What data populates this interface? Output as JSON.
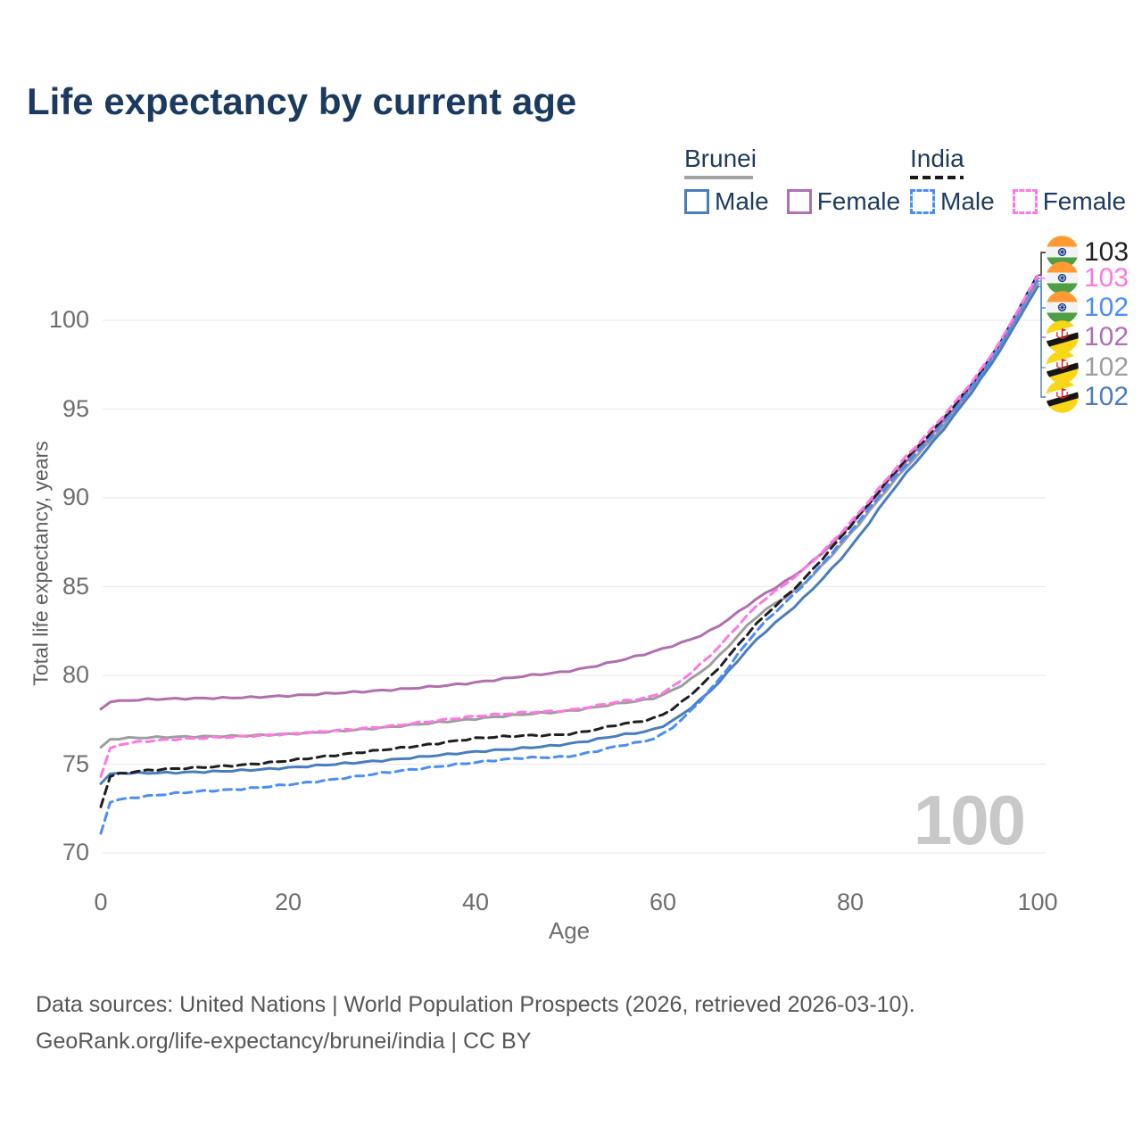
{
  "title": "Life expectancy by current age",
  "watermark": "100",
  "legend": {
    "groups": [
      {
        "country": "Brunei",
        "line_style": "solid",
        "underline_color": "#a3a3a3",
        "items": [
          {
            "label": "Male",
            "color": "#4a7dbe"
          },
          {
            "label": "Female",
            "color": "#b06fb0"
          }
        ]
      },
      {
        "country": "India",
        "line_style": "dashed",
        "underline_color": "#1a1a1a",
        "items": [
          {
            "label": "Male",
            "color": "#4a8ef5"
          },
          {
            "label": "Female",
            "color": "#ff77e3"
          }
        ]
      }
    ]
  },
  "chart_data": {
    "type": "line",
    "title": "Life expectancy by current age",
    "xlabel": "Age",
    "ylabel": "Total life expectancy, years",
    "xlim": [
      0,
      100
    ],
    "ylim": [
      70,
      103
    ],
    "xticks": [
      0,
      20,
      40,
      60,
      80,
      100
    ],
    "yticks": [
      70,
      75,
      80,
      85,
      90,
      95,
      100
    ],
    "grid": "horizontal",
    "legend_position": "top-right",
    "ages": [
      0,
      1,
      2,
      5,
      10,
      15,
      20,
      25,
      30,
      35,
      40,
      45,
      50,
      55,
      60,
      65,
      70,
      75,
      80,
      85,
      90,
      95,
      100
    ],
    "series": [
      {
        "name": "Brunei Female",
        "country": "Brunei",
        "sex": "Female",
        "style": "solid",
        "color": "#b06fb0",
        "end_label_row": 3,
        "values": [
          78.1,
          78.5,
          78.55,
          78.65,
          78.7,
          78.75,
          78.85,
          79.0,
          79.15,
          79.35,
          79.6,
          79.95,
          80.25,
          80.8,
          81.5,
          82.5,
          84.3,
          86.0,
          88.45,
          91.5,
          94.35,
          97.8,
          102.2
        ]
      },
      {
        "name": "Brunei Total",
        "country": "Brunei",
        "sex": "Total",
        "style": "solid",
        "color": "#9e9e9e",
        "end_label_row": 4,
        "values": [
          75.95,
          76.4,
          76.45,
          76.5,
          76.55,
          76.6,
          76.7,
          76.85,
          77.05,
          77.3,
          77.55,
          77.8,
          78.0,
          78.4,
          78.9,
          80.6,
          83.3,
          85.15,
          87.95,
          91.15,
          94.1,
          97.65,
          102.05
        ]
      },
      {
        "name": "Brunei Male",
        "country": "Brunei",
        "sex": "Male",
        "style": "solid",
        "color": "#4a7dbe",
        "end_label_row": 5,
        "values": [
          73.9,
          74.45,
          74.5,
          74.5,
          74.55,
          74.65,
          74.8,
          75.0,
          75.2,
          75.45,
          75.7,
          75.9,
          76.15,
          76.6,
          77.15,
          79.1,
          82.0,
          84.35,
          87.2,
          90.75,
          93.9,
          97.5,
          101.9
        ]
      },
      {
        "name": "India Total",
        "country": "India",
        "sex": "Total",
        "style": "dashed",
        "color": "#1f1f1f",
        "end_label_row": 0,
        "values": [
          72.6,
          74.3,
          74.45,
          74.65,
          74.8,
          74.95,
          75.2,
          75.5,
          75.8,
          76.1,
          76.45,
          76.6,
          76.7,
          77.2,
          77.8,
          79.9,
          82.9,
          85.4,
          88.4,
          91.6,
          94.5,
          97.9,
          102.55
        ]
      },
      {
        "name": "India Male",
        "country": "India",
        "sex": "Male",
        "style": "dashed",
        "color": "#4a8ef5",
        "end_label_row": 2,
        "values": [
          71.1,
          72.85,
          73.0,
          73.2,
          73.45,
          73.6,
          73.85,
          74.15,
          74.5,
          74.8,
          75.1,
          75.35,
          75.45,
          76.0,
          76.7,
          79.15,
          82.5,
          85.1,
          88.1,
          91.3,
          94.25,
          97.75,
          102.35
        ]
      },
      {
        "name": "India Female",
        "country": "India",
        "sex": "Female",
        "style": "dashed",
        "color": "#ff77e3",
        "end_label_row": 1,
        "values": [
          74.3,
          75.9,
          76.1,
          76.3,
          76.45,
          76.55,
          76.7,
          76.9,
          77.1,
          77.4,
          77.7,
          77.9,
          78.05,
          78.5,
          79.05,
          81.1,
          83.9,
          85.95,
          88.6,
          91.75,
          94.65,
          98.0,
          102.5
        ]
      }
    ],
    "end_labels": [
      {
        "flag": "india",
        "series": "India Total",
        "value": "103",
        "color": "#222222"
      },
      {
        "flag": "india",
        "series": "India Female",
        "value": "103",
        "color": "#ff77e3"
      },
      {
        "flag": "india",
        "series": "India Male",
        "value": "102",
        "color": "#4a8ef5"
      },
      {
        "flag": "brunei",
        "series": "Brunei Female",
        "value": "102",
        "color": "#b06fb0"
      },
      {
        "flag": "brunei",
        "series": "Brunei Total",
        "value": "102",
        "color": "#9e9e9e"
      },
      {
        "flag": "brunei",
        "series": "Brunei Male",
        "value": "102",
        "color": "#4a7dbe"
      }
    ]
  },
  "footer": {
    "line1": "Data sources: United Nations | World Population Prospects (2026, retrieved 2026-03-10).",
    "line2": "GeoRank.org/life-expectancy/brunei/india | CC BY"
  }
}
